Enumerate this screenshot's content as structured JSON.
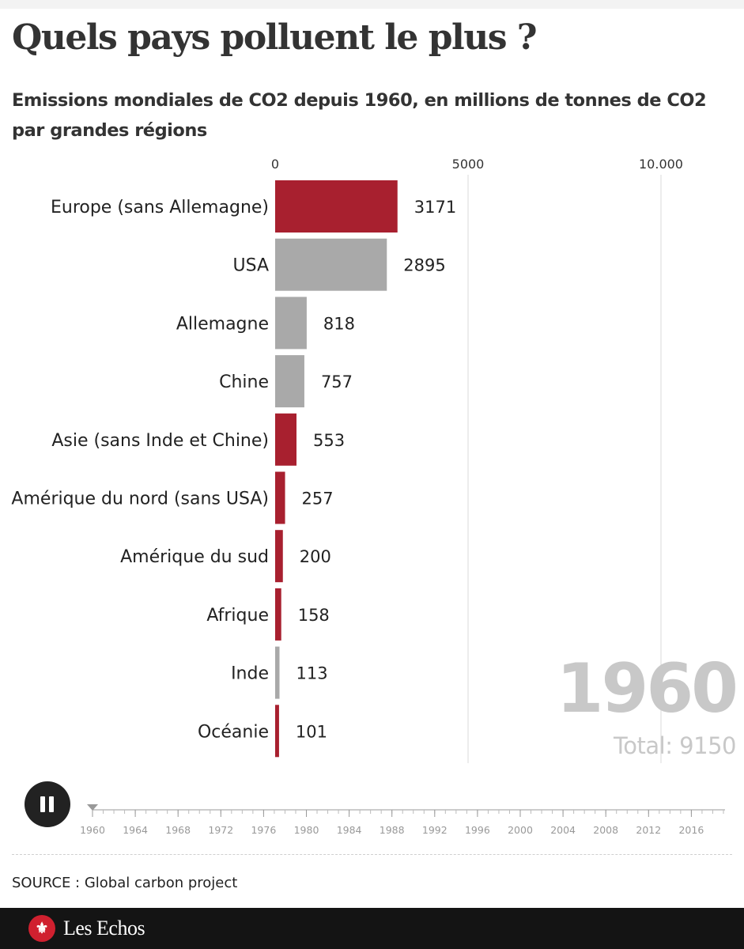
{
  "header": {
    "title": "Quels pays polluent le plus ?",
    "subtitle": "Emissions mondiales de CO2 depuis 1960, en millions de tonnes de CO2 par grandes régions"
  },
  "chart_data": {
    "type": "bar",
    "orientation": "horizontal",
    "title": "Quels pays polluent le plus ?",
    "subtitle": "Emissions mondiales de CO2 depuis 1960, en millions de tonnes de CO2 par grandes régions",
    "categories": [
      "Europe (sans Allemagne)",
      "USA",
      "Allemagne",
      "Chine",
      "Asie (sans Inde et Chine)",
      "Amérique du nord (sans USA)",
      "Amérique du sud",
      "Afrique",
      "Inde",
      "Océanie"
    ],
    "values": [
      3171,
      2895,
      818,
      757,
      553,
      257,
      200,
      158,
      113,
      101
    ],
    "value_labels": [
      "3171",
      "2895",
      "818",
      "757",
      "553",
      "257",
      "200",
      "158",
      "113",
      "101"
    ],
    "groups": [
      "region",
      "country",
      "country",
      "country",
      "region",
      "region",
      "region",
      "region",
      "country",
      "region"
    ],
    "colors": {
      "region": "#a8202f",
      "country": "#a9a9a9",
      "gridline": "#d9d9d9"
    },
    "xlim": [
      0,
      12000
    ],
    "x_ticks": [
      0,
      5000,
      10000
    ],
    "x_tick_labels": [
      "0",
      "5000",
      "10.000"
    ],
    "year": "1960",
    "total_label": "Total: 9150"
  },
  "player": {
    "state": "playing",
    "current_index": 0,
    "years": [
      "1960",
      "1964",
      "1968",
      "1972",
      "1976",
      "1980",
      "1984",
      "1988",
      "1992",
      "1996",
      "2000",
      "2004",
      "2008",
      "2012",
      "2016"
    ]
  },
  "source": "SOURCE : Global carbon project",
  "footer": {
    "brand": "Les Echos"
  }
}
